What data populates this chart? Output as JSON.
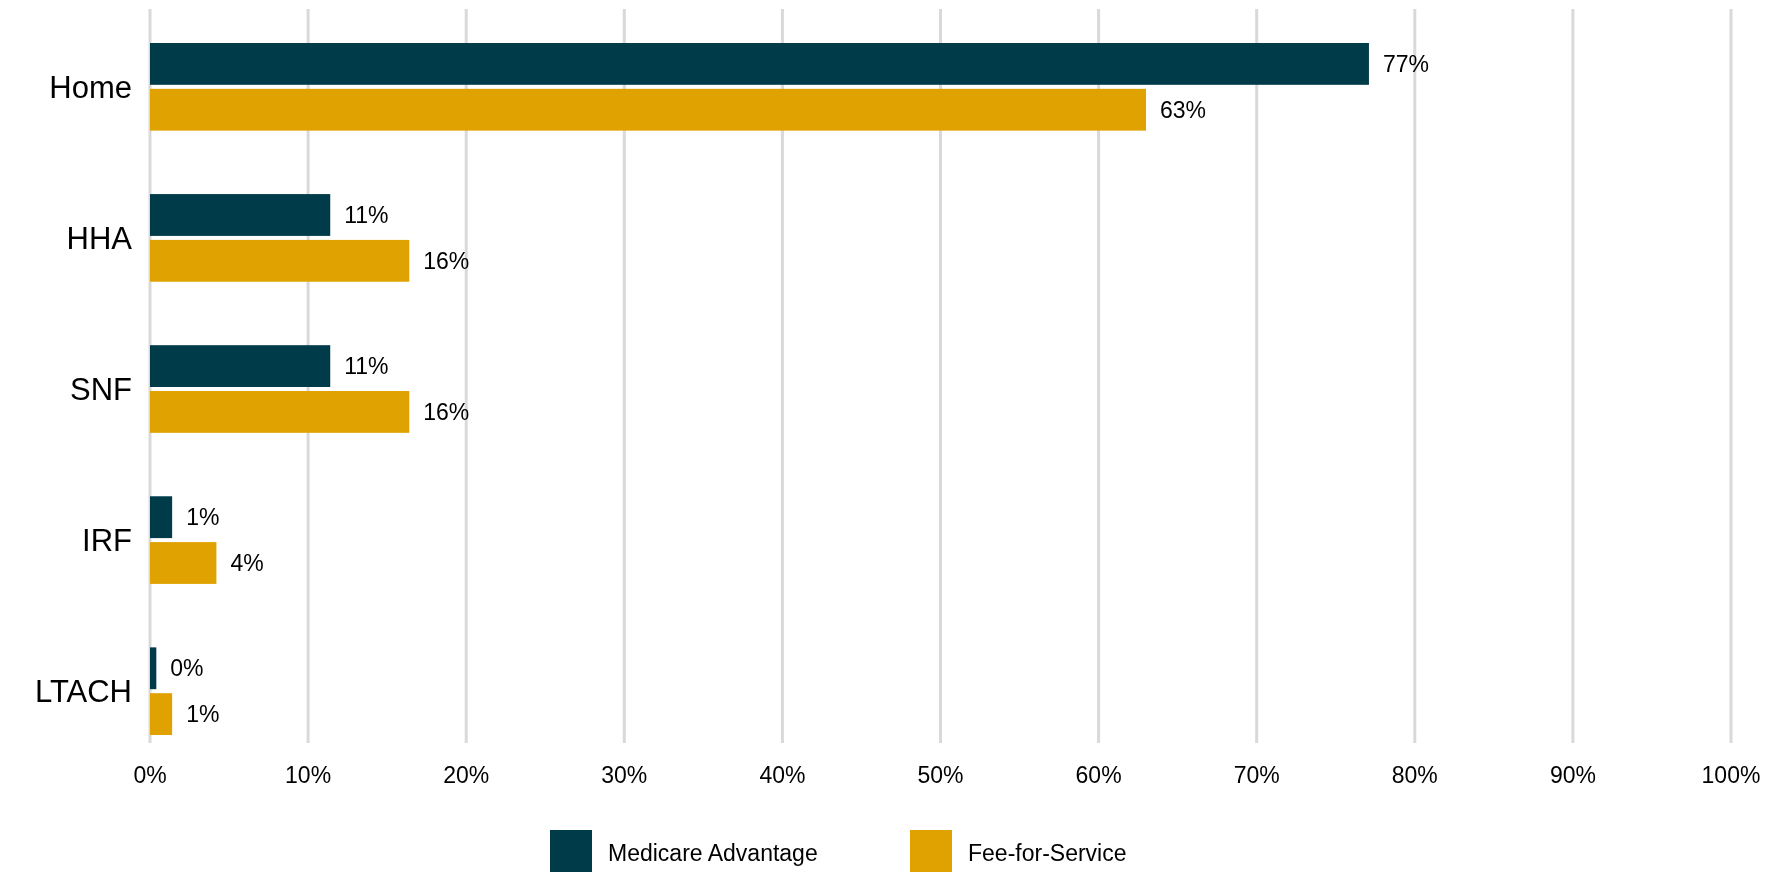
{
  "chart_data": {
    "type": "bar",
    "orientation": "horizontal",
    "categories": [
      "Home",
      "HHA",
      "SNF",
      "IRF",
      "LTACH"
    ],
    "series": [
      {
        "name": "Medicare Advantage",
        "color": "#003b4a",
        "values": [
          77.1,
          11.4,
          11.4,
          1.4,
          0.4
        ],
        "value_labels": [
          "77%",
          "11%",
          "11%",
          "1%",
          "0%"
        ]
      },
      {
        "name": "Fee-for-Service",
        "color": "#e0a200",
        "values": [
          63.0,
          16.4,
          16.4,
          4.2,
          1.4
        ],
        "value_labels": [
          "63%",
          "16%",
          "16%",
          "4%",
          "1%"
        ]
      }
    ],
    "xlim": [
      0,
      100
    ],
    "xticks": [
      {
        "value": 0,
        "label": "0%"
      },
      {
        "value": 10,
        "label": "10%"
      },
      {
        "value": 20,
        "label": "20%"
      },
      {
        "value": 30,
        "label": "30%"
      },
      {
        "value": 40,
        "label": "40%"
      },
      {
        "value": 50,
        "label": "50%"
      },
      {
        "value": 60,
        "label": "60%"
      },
      {
        "value": 70,
        "label": "70%"
      },
      {
        "value": 80,
        "label": "80%"
      },
      {
        "value": 90,
        "label": "90%"
      },
      {
        "value": 100,
        "label": "100%"
      }
    ],
    "grid": "x",
    "legend": "bottom"
  }
}
